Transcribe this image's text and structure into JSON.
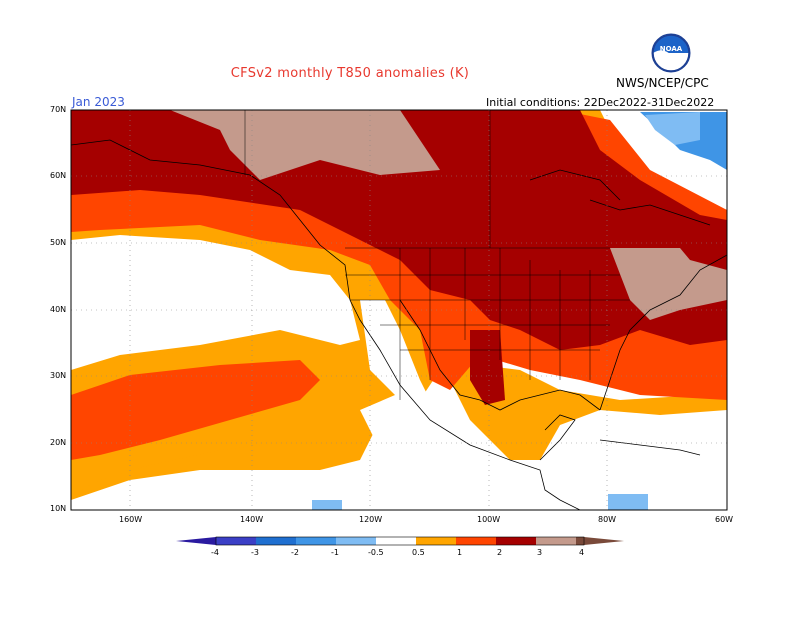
{
  "header": {
    "title": "CFSv2 monthly T850 anomalies (K)",
    "month": "Jan 2023",
    "initial_conditions": "Initial conditions: 22Dec2022-31Dec2022",
    "agency": "NWS/NCEP/CPC",
    "logo_text": "NOAA"
  },
  "axes": {
    "lat_labels": [
      "70N",
      "60N",
      "50N",
      "40N",
      "30N",
      "20N",
      "10N"
    ],
    "lon_labels": [
      "160W",
      "140W",
      "120W",
      "100W",
      "80W",
      "60W"
    ]
  },
  "colorbar": {
    "tick_labels": [
      "-4",
      "-3",
      "-2",
      "-1",
      "-0.5",
      "0.5",
      "1",
      "2",
      "3",
      "4"
    ],
    "colors": {
      "lt_neg4": "#2a1aa0",
      "neg4_neg3": "#3b3fc6",
      "neg3_neg2": "#1f6fd0",
      "neg2_neg1": "#3f95e6",
      "neg1_neg05": "#7fbcf3",
      "neutral": "#ffffff",
      "p05_1": "#ffa500",
      "p1_2": "#ff4500",
      "p2_3": "#a50000",
      "p3_4": "#c49a8c",
      "gt4": "#7a4a3a"
    }
  }
}
